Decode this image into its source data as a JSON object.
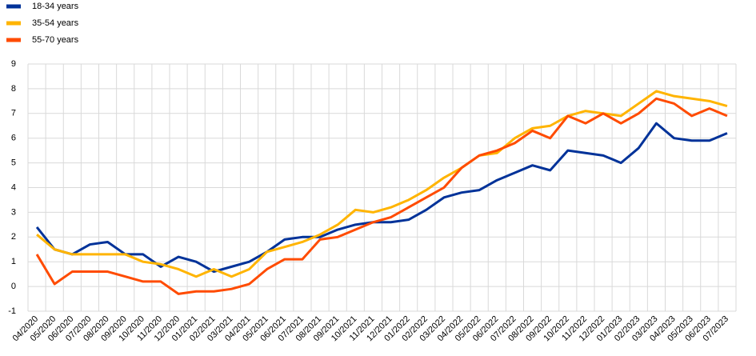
{
  "chart_data": {
    "type": "line",
    "categories": [
      "04/2020",
      "05/2020",
      "06/2020",
      "07/2020",
      "08/2020",
      "09/2020",
      "10/2020",
      "11/2020",
      "12/2020",
      "01/2021",
      "02/2021",
      "03/2021",
      "04/2021",
      "05/2021",
      "06/2021",
      "07/2021",
      "08/2021",
      "09/2021",
      "10/2021",
      "11/2021",
      "12/2021",
      "01/2022",
      "02/2022",
      "03/2022",
      "04/2022",
      "05/2022",
      "06/2022",
      "07/2022",
      "08/2022",
      "09/2022",
      "10/2022",
      "11/2022",
      "12/2022",
      "01/2023",
      "02/2023",
      "03/2023",
      "04/2023",
      "05/2023",
      "06/2023",
      "07/2023"
    ],
    "series": [
      {
        "name": "18-34 years",
        "color": "#003299",
        "values": [
          2.4,
          1.5,
          1.3,
          1.7,
          1.8,
          1.3,
          1.3,
          0.8,
          1.2,
          1.0,
          0.6,
          0.8,
          1.0,
          1.4,
          1.9,
          2.0,
          2.0,
          2.3,
          2.5,
          2.6,
          2.6,
          2.7,
          3.1,
          3.6,
          3.8,
          3.9,
          4.3,
          4.6,
          4.9,
          4.7,
          5.5,
          5.4,
          5.3,
          5.0,
          5.6,
          6.6,
          6.0,
          5.9,
          5.9,
          6.2
        ]
      },
      {
        "name": "35-54 years",
        "color": "#ffb400",
        "values": [
          2.1,
          1.5,
          1.3,
          1.3,
          1.3,
          1.3,
          1.0,
          0.9,
          0.7,
          0.4,
          0.7,
          0.4,
          0.7,
          1.4,
          1.6,
          1.8,
          2.1,
          2.5,
          3.1,
          3.0,
          3.2,
          3.5,
          3.9,
          4.4,
          4.8,
          5.3,
          5.4,
          6.0,
          6.4,
          6.5,
          6.9,
          7.1,
          7.0,
          6.9,
          7.4,
          7.9,
          7.7,
          7.6,
          7.5,
          7.3
        ]
      },
      {
        "name": "55-70 years",
        "color": "#ff4b00",
        "values": [
          1.3,
          0.1,
          0.6,
          0.6,
          0.6,
          0.4,
          0.2,
          0.2,
          -0.3,
          -0.2,
          -0.2,
          -0.1,
          0.1,
          0.7,
          1.1,
          1.1,
          1.9,
          2.0,
          2.3,
          2.6,
          2.8,
          3.2,
          3.6,
          4.0,
          4.8,
          5.3,
          5.5,
          5.8,
          6.3,
          6.0,
          6.9,
          6.6,
          7.0,
          6.6,
          7.0,
          7.6,
          7.4,
          6.9,
          7.2,
          6.9
        ]
      }
    ],
    "ylim": [
      -1,
      9
    ],
    "yticks": [
      -1,
      0,
      1,
      2,
      3,
      4,
      5,
      6,
      7,
      8,
      9
    ],
    "grid": true,
    "legend": "top-left"
  }
}
